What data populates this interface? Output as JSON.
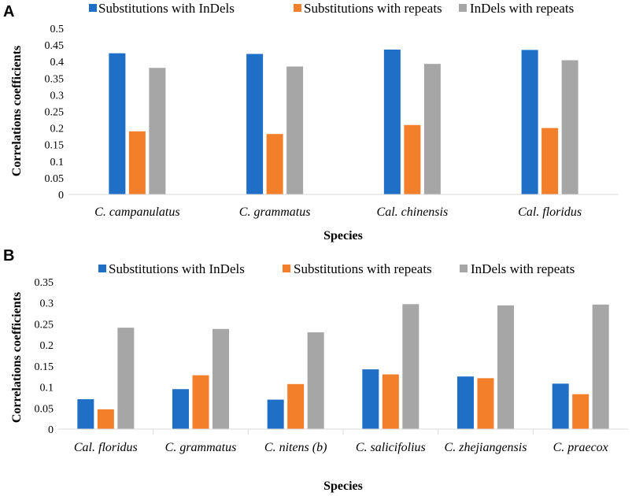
{
  "colors": [
    "#1f6fc6",
    "#f47f2a",
    "#a6a6a6"
  ],
  "chart_data": [
    {
      "panel": "A",
      "type": "bar",
      "categories": [
        "C. campanulatus",
        "C. grammatus",
        "Cal. chinensis",
        "Cal. floridus"
      ],
      "series": [
        {
          "name": "Substitutions with InDels",
          "values": [
            0.425,
            0.423,
            0.436,
            0.435
          ]
        },
        {
          "name": "Substitutions with repeats",
          "values": [
            0.19,
            0.182,
            0.209,
            0.2
          ]
        },
        {
          "name": "InDels with repeats",
          "values": [
            0.381,
            0.385,
            0.393,
            0.404
          ]
        }
      ],
      "ylim": [
        0,
        0.5
      ],
      "yticks": [
        "0",
        "0.05",
        "0.1",
        "0.15",
        "0.2",
        "0.25",
        "0.3",
        "0.35",
        "0.4",
        "0.45",
        "0.5"
      ],
      "ylabel": "Correlations coefficients",
      "xlabel": "Species",
      "legend": "top"
    },
    {
      "panel": "B",
      "type": "bar",
      "categories": [
        "Cal. floridus",
        "C. grammatus",
        "C. nitens (b)",
        "C. salicifolius",
        "C. zhejiangensis",
        "C. praecox"
      ],
      "series": [
        {
          "name": "Substitutions with InDels",
          "values": [
            0.071,
            0.095,
            0.07,
            0.142,
            0.125,
            0.108
          ]
        },
        {
          "name": "Substitutions with repeats",
          "values": [
            0.047,
            0.128,
            0.107,
            0.13,
            0.121,
            0.083
          ]
        },
        {
          "name": "InDels with repeats",
          "values": [
            0.241,
            0.238,
            0.23,
            0.297,
            0.294,
            0.296
          ]
        }
      ],
      "ylim": [
        0,
        0.35
      ],
      "yticks": [
        "0",
        "0.05",
        "0.1",
        "0.15",
        "0.2",
        "0.25",
        "0.3",
        "0.35"
      ],
      "ylabel": "Correlations coefficients",
      "xlabel": "Species",
      "legend": "top"
    }
  ]
}
